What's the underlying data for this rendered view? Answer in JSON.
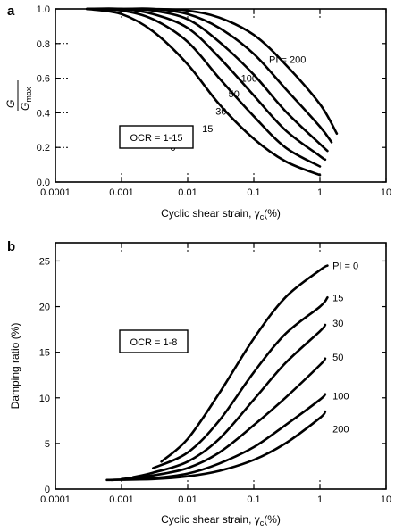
{
  "chart_data": [
    {
      "type": "line",
      "panel_label": "a",
      "ylabel_num": "G",
      "ylabel_den": "G",
      "ylabel_den_sub": "max",
      "xlabel": "Cyclic shear strain, γ",
      "xlabel_sub": "c",
      "xlabel_suffix": "(%)",
      "x_scale": "log",
      "xlim": [
        0.0001,
        10
      ],
      "ylim": [
        0,
        1.0
      ],
      "x_ticks": [
        "0.0001",
        "0.001",
        "0.01",
        "0.1",
        "1",
        "10"
      ],
      "y_ticks": [
        "0.0",
        "0.2",
        "0.4",
        "0.6",
        "0.8",
        "1.0"
      ],
      "annotation": "OCR = 1-15",
      "grid": "dotted guide marks at decades and y ticks",
      "series": [
        {
          "name": "0",
          "x": [
            0.0003,
            0.001,
            0.003,
            0.01,
            0.03,
            0.1,
            0.3,
            1.0
          ],
          "y": [
            1.0,
            0.97,
            0.87,
            0.68,
            0.45,
            0.25,
            0.12,
            0.04
          ]
        },
        {
          "name": "15",
          "x": [
            0.0003,
            0.001,
            0.003,
            0.01,
            0.03,
            0.1,
            0.3,
            1.0
          ],
          "y": [
            1.0,
            0.99,
            0.94,
            0.81,
            0.6,
            0.38,
            0.2,
            0.09
          ]
        },
        {
          "name": "30",
          "x": [
            0.0003,
            0.001,
            0.003,
            0.01,
            0.03,
            0.1,
            0.3,
            1.0,
            1.2
          ],
          "y": [
            1.0,
            1.0,
            0.97,
            0.89,
            0.72,
            0.5,
            0.3,
            0.15,
            0.13
          ]
        },
        {
          "name": "50",
          "x": [
            0.0003,
            0.001,
            0.003,
            0.01,
            0.03,
            0.1,
            0.3,
            1.0,
            1.3
          ],
          "y": [
            1.0,
            1.0,
            0.99,
            0.94,
            0.81,
            0.62,
            0.41,
            0.22,
            0.18
          ]
        },
        {
          "name": "100",
          "x": [
            0.0003,
            0.001,
            0.003,
            0.01,
            0.03,
            0.1,
            0.3,
            1.0,
            1.5
          ],
          "y": [
            1.0,
            1.0,
            1.0,
            0.97,
            0.89,
            0.74,
            0.54,
            0.32,
            0.23
          ]
        },
        {
          "name": "PI = 200",
          "x": [
            0.0003,
            0.001,
            0.003,
            0.01,
            0.03,
            0.1,
            0.3,
            1.0,
            1.8
          ],
          "y": [
            1.0,
            1.0,
            1.0,
            0.99,
            0.95,
            0.85,
            0.68,
            0.45,
            0.28
          ]
        }
      ]
    },
    {
      "type": "line",
      "panel_label": "b",
      "ylabel": "Damping ratio (%)",
      "xlabel": "Cyclic shear strain, γ",
      "xlabel_sub": "c",
      "xlabel_suffix": "(%)",
      "x_scale": "log",
      "xlim": [
        0.0001,
        10
      ],
      "ylim": [
        0,
        27
      ],
      "x_ticks": [
        "0.0001",
        "0.001",
        "0.01",
        "0.1",
        "1",
        "10"
      ],
      "y_ticks": [
        "0",
        "5",
        "10",
        "15",
        "20",
        "25"
      ],
      "annotation": "OCR = 1-8",
      "grid": "dotted guide marks at decades",
      "series": [
        {
          "name": "PI = 0",
          "x": [
            0.004,
            0.01,
            0.03,
            0.1,
            0.3,
            1.0,
            1.3
          ],
          "y": [
            3.0,
            5.5,
            10.5,
            16.5,
            21.0,
            24.0,
            24.5
          ]
        },
        {
          "name": "15",
          "x": [
            0.003,
            0.01,
            0.03,
            0.1,
            0.3,
            1.0,
            1.3
          ],
          "y": [
            2.3,
            4.0,
            7.5,
            12.8,
            17.0,
            20.0,
            21.0
          ]
        },
        {
          "name": "30",
          "x": [
            0.0015,
            0.003,
            0.01,
            0.03,
            0.1,
            0.3,
            1.0,
            1.2
          ],
          "y": [
            1.3,
            1.8,
            3.0,
            5.5,
            9.8,
            13.8,
            17.3,
            18.0
          ]
        },
        {
          "name": "50",
          "x": [
            0.001,
            0.003,
            0.01,
            0.03,
            0.1,
            0.3,
            1.0,
            1.2
          ],
          "y": [
            1.1,
            1.5,
            2.3,
            4.0,
            7.0,
            10.0,
            13.6,
            14.3
          ]
        },
        {
          "name": "100",
          "x": [
            0.0007,
            0.003,
            0.01,
            0.03,
            0.1,
            0.3,
            1.0,
            1.2
          ],
          "y": [
            1.0,
            1.2,
            1.7,
            2.8,
            4.6,
            7.0,
            9.8,
            10.4
          ]
        },
        {
          "name": "200",
          "x": [
            0.0006,
            0.003,
            0.01,
            0.03,
            0.1,
            0.3,
            1.0,
            1.2
          ],
          "y": [
            1.0,
            1.1,
            1.4,
            2.0,
            3.2,
            5.0,
            7.8,
            8.5
          ]
        }
      ]
    }
  ]
}
